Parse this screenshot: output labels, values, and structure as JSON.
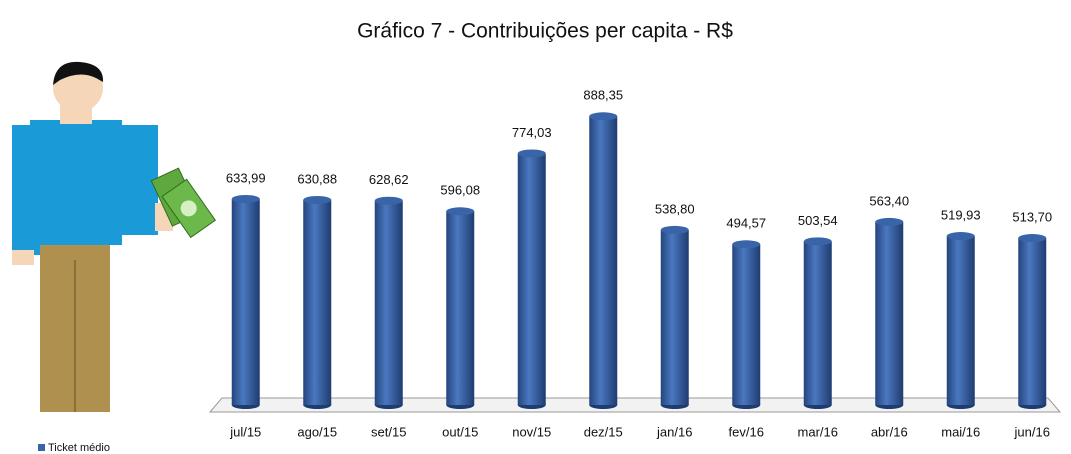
{
  "chart_data": {
    "type": "bar",
    "title": "Gráfico 7 -  Contribuições per capita - R$",
    "categories": [
      "jul/15",
      "ago/15",
      "set/15",
      "out/15",
      "nov/15",
      "dez/15",
      "jan/16",
      "fev/16",
      "mar/16",
      "abr/16",
      "mai/16",
      "jun/16"
    ],
    "series": [
      {
        "name": "Ticket médio",
        "color": "#3a64a8",
        "values": [
          633.99,
          630.88,
          628.62,
          596.08,
          774.03,
          888.35,
          538.8,
          494.57,
          503.54,
          563.4,
          519.93,
          513.7
        ],
        "value_labels": [
          "633,99",
          "630,88",
          "628,62",
          "596,08",
          "774,03",
          "888,35",
          "538,80",
          "494,57",
          "503,54",
          "563,40",
          "519,93",
          "513,70"
        ]
      }
    ],
    "ylim": [
      0,
      1000
    ]
  }
}
